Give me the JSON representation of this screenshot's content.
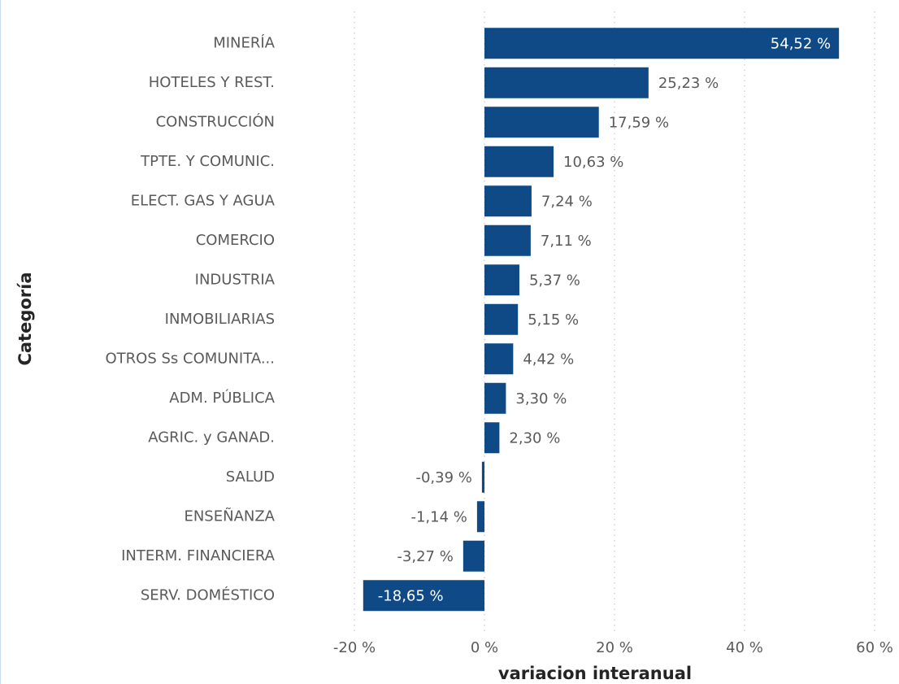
{
  "chart_data": {
    "type": "bar",
    "orientation": "horizontal",
    "categories": [
      "MINERÍA",
      "HOTELES Y REST.",
      "CONSTRUCCIÓN",
      "TPTE. Y COMUNIC.",
      "ELECT. GAS Y AGUA",
      "COMERCIO",
      "INDUSTRIA",
      "INMOBILIARIAS",
      "OTROS Ss COMUNITA...",
      "ADM. PÚBLICA",
      "AGRIC. y GANAD.",
      "SALUD",
      "ENSEÑANZA",
      "INTERM. FINANCIERA",
      "SERV. DOMÉSTICO"
    ],
    "values": [
      54.52,
      25.23,
      17.59,
      10.63,
      7.24,
      7.11,
      5.37,
      5.15,
      4.42,
      3.3,
      2.3,
      -0.39,
      -1.14,
      -3.27,
      -18.65
    ],
    "value_labels": [
      "54,52 %",
      "25,23 %",
      "17,59 %",
      "10,63 %",
      "7,24 %",
      "7,11 %",
      "5,37 %",
      "5,15 %",
      "4,42 %",
      "3,30 %",
      "2,30 %",
      "-0,39 %",
      "-1,14 %",
      "-3,27 %",
      "-18,65 %"
    ],
    "color": "#0f4a86",
    "xlim": [
      -20,
      60
    ],
    "xticks": [
      {
        "value": -20,
        "label": "-20 %"
      },
      {
        "value": 0,
        "label": "0 %"
      },
      {
        "value": 20,
        "label": "20 %"
      },
      {
        "value": 40,
        "label": "40 %"
      },
      {
        "value": 60,
        "label": "60 %"
      }
    ],
    "grid": true,
    "xlabel": "variacion interanual",
    "ylabel": "Categoría"
  }
}
